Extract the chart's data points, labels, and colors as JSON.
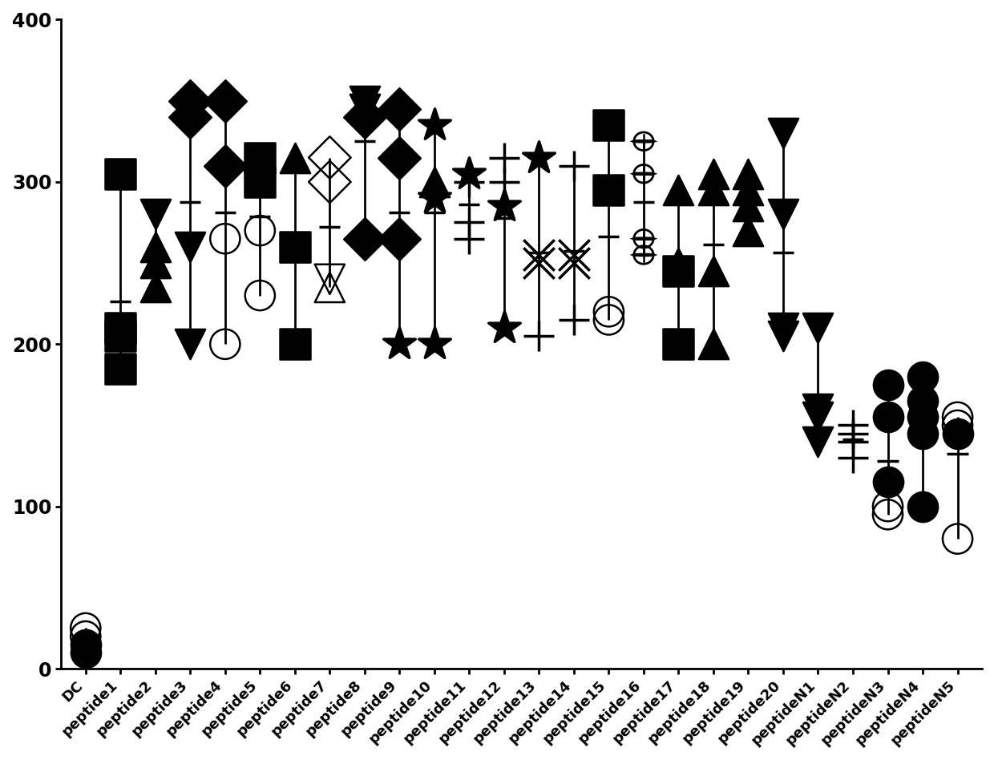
{
  "categories": [
    "DC",
    "peptide1",
    "peptide2",
    "peptide3",
    "peptide4",
    "peptide5",
    "peptide6",
    "peptide7",
    "peptide8",
    "peptide9",
    "peptide10",
    "peptide11",
    "peptide12",
    "peptide13",
    "peptide14",
    "peptide15",
    "peptide16",
    "peptide17",
    "peptide18",
    "peptide19",
    "peptide20",
    "peptideN1",
    "peptideN2",
    "peptideN3",
    "peptideN4",
    "peptideN5"
  ],
  "chart_data": {
    "DC": {
      "vals": [
        10,
        15,
        20,
        25
      ],
      "markers": [
        "o",
        "o",
        "o",
        "o"
      ],
      "filled": [
        true,
        true,
        false,
        false
      ]
    },
    "peptide1": {
      "vals": [
        185,
        205,
        210,
        305
      ],
      "markers": [
        "s",
        "s",
        "s",
        "s"
      ],
      "filled": [
        true,
        true,
        true,
        true
      ]
    },
    "peptide2": {
      "vals": [
        235,
        250,
        260,
        280
      ],
      "markers": [
        "^",
        "^",
        "^",
        "v"
      ],
      "filled": [
        true,
        true,
        true,
        true
      ]
    },
    "peptide3": {
      "vals": [
        200,
        260,
        340,
        350
      ],
      "markers": [
        "v",
        "v",
        "D",
        "D"
      ],
      "filled": [
        true,
        true,
        true,
        true
      ]
    },
    "peptide4": {
      "vals": [
        200,
        265,
        310,
        350
      ],
      "markers": [
        "o",
        "o",
        "D",
        "D"
      ],
      "filled": [
        false,
        false,
        true,
        true
      ]
    },
    "peptide5": {
      "vals": [
        230,
        270,
        300,
        315
      ],
      "markers": [
        "o",
        "o",
        "s",
        "s"
      ],
      "filled": [
        false,
        false,
        true,
        true
      ]
    },
    "peptide6": {
      "vals": [
        200,
        260,
        260,
        315
      ],
      "markers": [
        "s",
        "s",
        "^",
        "^"
      ],
      "filled": [
        true,
        true,
        true,
        true
      ]
    },
    "peptide7": {
      "vals": [
        235,
        240,
        300,
        315
      ],
      "markers": [
        "^",
        "v",
        "D",
        "D"
      ],
      "filled": [
        false,
        false,
        false,
        false
      ]
    },
    "peptide8": {
      "vals": [
        265,
        340,
        345,
        350
      ],
      "markers": [
        "D",
        "D",
        "v",
        "v"
      ],
      "filled": [
        true,
        true,
        true,
        true
      ]
    },
    "peptide9": {
      "vals": [
        200,
        265,
        315,
        345
      ],
      "markers": [
        "*",
        "D",
        "D",
        "D"
      ],
      "filled": [
        true,
        true,
        true,
        true
      ]
    },
    "peptide10": {
      "vals": [
        200,
        290,
        300,
        335
      ],
      "markers": [
        "*",
        "*",
        "^",
        "*"
      ],
      "filled": [
        true,
        true,
        true,
        true
      ]
    },
    "peptide11": {
      "vals": [
        265,
        275,
        300,
        305
      ],
      "markers": [
        "+",
        "+",
        "+",
        "*"
      ],
      "filled": [
        true,
        true,
        true,
        true
      ]
    },
    "peptide12": {
      "vals": [
        210,
        285,
        300,
        315
      ],
      "markers": [
        "*",
        "*",
        "+",
        "+"
      ],
      "filled": [
        true,
        true,
        true,
        true
      ]
    },
    "peptide13": {
      "vals": [
        205,
        250,
        255,
        315
      ],
      "markers": [
        "+",
        "x",
        "x",
        "*"
      ],
      "filled": [
        true,
        true,
        true,
        true
      ]
    },
    "peptide14": {
      "vals": [
        215,
        250,
        255,
        310
      ],
      "markers": [
        "+",
        "x",
        "x",
        "+"
      ],
      "filled": [
        true,
        true,
        true,
        true
      ]
    },
    "peptide15": {
      "vals": [
        215,
        220,
        295,
        335
      ],
      "markers": [
        "o",
        "o",
        "s",
        "s"
      ],
      "filled": [
        false,
        false,
        true,
        true
      ]
    },
    "peptide16": {
      "vals": [
        255,
        265,
        305,
        325
      ],
      "markers": [
        "Q",
        "Q",
        "Q",
        "Q"
      ],
      "filled": [
        true,
        true,
        true,
        true
      ]
    },
    "peptide17": {
      "vals": [
        200,
        245,
        250,
        295
      ],
      "markers": [
        "s",
        "s",
        "^",
        "^"
      ],
      "filled": [
        true,
        true,
        true,
        true
      ]
    },
    "peptide18": {
      "vals": [
        200,
        245,
        295,
        305
      ],
      "markers": [
        "^",
        "^",
        "^",
        "^"
      ],
      "filled": [
        true,
        true,
        true,
        true
      ]
    },
    "peptide19": {
      "vals": [
        270,
        285,
        295,
        305
      ],
      "markers": [
        "^",
        "^",
        "^",
        "^"
      ],
      "filled": [
        true,
        true,
        true,
        true
      ]
    },
    "peptide20": {
      "vals": [
        205,
        210,
        280,
        330
      ],
      "markers": [
        "v",
        "v",
        "v",
        "v"
      ],
      "filled": [
        true,
        true,
        true,
        true
      ]
    },
    "peptideN1": {
      "vals": [
        140,
        155,
        160,
        210
      ],
      "markers": [
        "v",
        "v",
        "v",
        "v"
      ],
      "filled": [
        true,
        true,
        true,
        true
      ]
    },
    "peptideN2": {
      "vals": [
        130,
        140,
        145,
        150
      ],
      "markers": [
        "+",
        "+",
        "+",
        "+"
      ],
      "filled": [
        true,
        true,
        true,
        true
      ]
    },
    "peptideN3": {
      "vals": [
        95,
        100,
        115,
        155,
        175
      ],
      "markers": [
        "o",
        "o",
        "o",
        "o",
        "o"
      ],
      "filled": [
        false,
        false,
        true,
        true,
        true
      ]
    },
    "peptideN4": {
      "vals": [
        100,
        145,
        155,
        165,
        180
      ],
      "markers": [
        "o",
        "o",
        "o",
        "o",
        "o"
      ],
      "filled": [
        true,
        true,
        true,
        true,
        true
      ]
    },
    "peptideN5": {
      "vals": [
        80,
        145,
        150,
        155
      ],
      "markers": [
        "o",
        "o",
        "o",
        "o"
      ],
      "filled": [
        false,
        true,
        false,
        false
      ]
    }
  },
  "ylim": [
    0,
    400
  ],
  "yticks": [
    0,
    100,
    200,
    300,
    400
  ],
  "bg_color": "#ffffff"
}
